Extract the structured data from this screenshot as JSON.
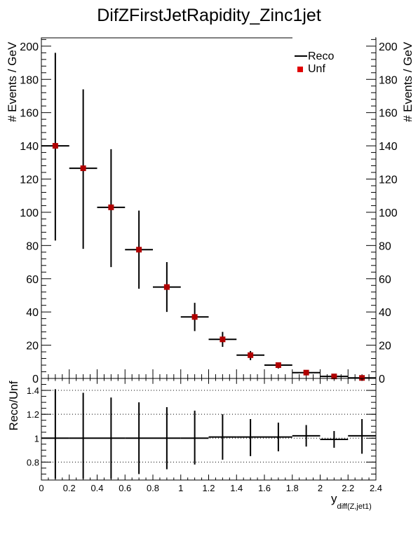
{
  "title": "DifZFirstJetRapidity_Zinc1jet",
  "chart_data": [
    {
      "type": "scatter",
      "panel": "main",
      "ylabel": "# Events / GeV",
      "xlim": [
        0,
        2.4
      ],
      "ylim": [
        0,
        205
      ],
      "y_ticks": [
        0,
        20,
        40,
        60,
        80,
        100,
        120,
        140,
        160,
        180,
        200
      ],
      "legend": {
        "placement": "top-right",
        "entries": [
          "Reco",
          "Unf"
        ]
      },
      "series": [
        {
          "name": "Reco",
          "style": "error-bars",
          "color": "#000000",
          "x": [
            0.1,
            0.3,
            0.5,
            0.7,
            0.9,
            1.1,
            1.3,
            1.5,
            1.7,
            1.9,
            2.1,
            2.3
          ],
          "xerr": 0.1,
          "y": [
            140,
            126.5,
            103,
            77.5,
            55,
            37,
            23.5,
            14,
            8,
            3.5,
            1.2,
            0.3
          ],
          "y_low": [
            83,
            78,
            67,
            54,
            40,
            28.5,
            19,
            11,
            6,
            2.6,
            0.7,
            0.0
          ],
          "y_high": [
            196,
            174,
            138,
            101,
            70,
            45.5,
            28,
            16.5,
            9.5,
            4.3,
            1.7,
            0.7
          ]
        },
        {
          "name": "Unf",
          "style": "markers",
          "color": "#cc0000",
          "x": [
            0.1,
            0.3,
            0.5,
            0.7,
            0.9,
            1.1,
            1.3,
            1.5,
            1.7,
            1.9,
            2.1,
            2.3
          ],
          "y": [
            140,
            126.5,
            103,
            77.5,
            55,
            37,
            23.5,
            14,
            8,
            3.5,
            1.2,
            0.3
          ]
        }
      ]
    },
    {
      "type": "scatter",
      "panel": "ratio",
      "ylabel": "Reco/Unf",
      "xlabel": "y",
      "xlabel_sub": "diff(Z,jet1)",
      "xlim": [
        0,
        2.4
      ],
      "ylim": [
        0.65,
        1.5
      ],
      "y_ticks": [
        0.8,
        1,
        1.2,
        1.4
      ],
      "y_tick_labels": [
        "0.8",
        "1",
        "1.2",
        "1.4"
      ],
      "x_ticks": [
        0,
        0.2,
        0.4,
        0.6,
        0.8,
        1,
        1.2,
        1.4,
        1.6,
        1.8,
        2,
        2.2,
        2.4
      ],
      "x_tick_labels": [
        "0",
        "0.2",
        "0.4",
        "0.6",
        "0.8",
        "1",
        "1.2",
        "1.4",
        "1.6",
        "1.8",
        "2",
        "2.2",
        "2.4"
      ],
      "dotted_gridlines": [
        0.8,
        1.0,
        1.2,
        1.4
      ],
      "series": [
        {
          "name": "Reco/Unf",
          "style": "error-bars",
          "color": "#000000",
          "x": [
            0.1,
            0.3,
            0.5,
            0.7,
            0.9,
            1.1,
            1.3,
            1.5,
            1.7,
            1.9,
            2.1,
            2.3
          ],
          "xerr": 0.1,
          "y": [
            1.0,
            1.0,
            1.0,
            1.0,
            1.0,
            1.0,
            1.01,
            1.01,
            1.01,
            1.02,
            0.99,
            1.02
          ],
          "y_low": [
            0.66,
            0.66,
            0.66,
            0.7,
            0.74,
            0.78,
            0.82,
            0.85,
            0.89,
            0.93,
            0.92,
            0.87
          ],
          "y_high": [
            1.41,
            1.38,
            1.34,
            1.3,
            1.26,
            1.23,
            1.2,
            1.16,
            1.13,
            1.11,
            1.06,
            1.16
          ]
        }
      ]
    }
  ]
}
